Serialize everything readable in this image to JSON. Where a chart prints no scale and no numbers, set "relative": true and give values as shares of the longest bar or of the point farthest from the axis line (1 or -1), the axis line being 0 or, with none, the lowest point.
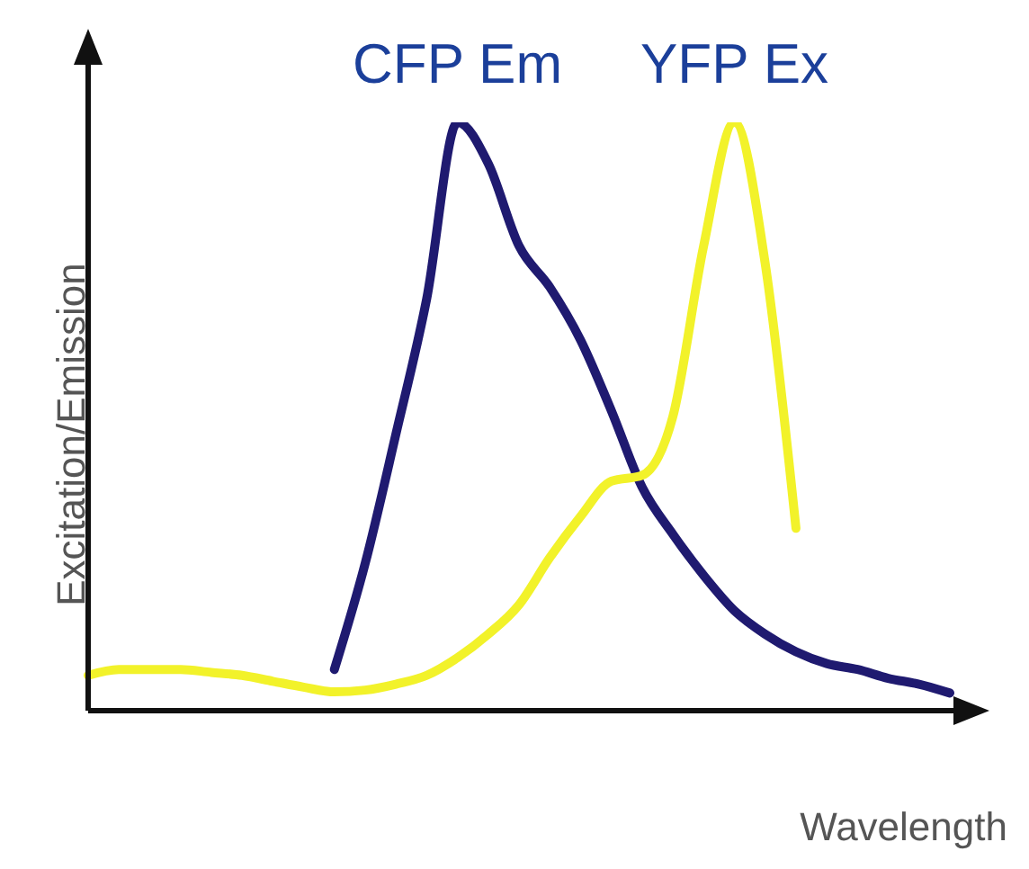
{
  "chart_data": {
    "type": "line",
    "relative": true,
    "xlabel": "Wavelength",
    "ylabel": "Excitation/Emission",
    "marker": "none",
    "line_style": "solid",
    "categories": [
      null,
      null,
      null,
      null,
      null,
      null,
      null,
      null,
      null,
      null,
      null,
      null,
      null,
      null,
      null,
      null,
      null,
      null,
      null,
      null,
      null,
      null,
      null,
      null,
      null,
      null,
      null,
      null,
      null
    ],
    "series": [
      {
        "name": "CFP Em",
        "color": "#1f1a70",
        "values": [
          null,
          null,
          null,
          null,
          null,
          null,
          null,
          null,
          0.07,
          0.25,
          0.47,
          0.7,
          1.0,
          0.93,
          0.79,
          0.72,
          0.63,
          0.51,
          0.38,
          0.3,
          0.23,
          0.17,
          0.13,
          0.1,
          0.08,
          0.07,
          0.055,
          0.045,
          0.03
        ]
      },
      {
        "name": "YFP Ex",
        "color": "#f2f22a",
        "values": [
          0.06,
          0.07,
          0.07,
          0.07,
          0.065,
          0.06,
          0.05,
          0.04,
          0.032,
          0.035,
          0.045,
          0.06,
          0.09,
          0.13,
          0.18,
          0.26,
          0.33,
          0.39,
          0.4,
          0.5,
          0.79,
          1.0,
          0.76,
          0.31,
          null,
          null,
          null,
          null,
          null
        ]
      }
    ]
  }
}
